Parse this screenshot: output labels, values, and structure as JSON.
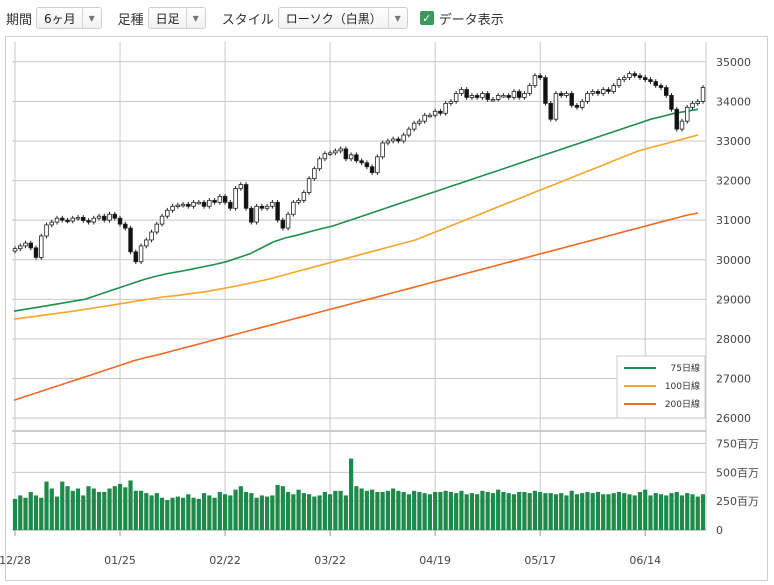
{
  "toolbar": {
    "period_label": "期間",
    "period_value": "6ヶ月",
    "bar_label": "足種",
    "bar_value": "日足",
    "style_label": "スタイル",
    "style_value": "ローソク（白黒）",
    "data_display_label": "データ表示"
  },
  "chart_data": {
    "type": "candlestick",
    "x_ticks": [
      "12/28",
      "01/25",
      "02/22",
      "03/22",
      "04/19",
      "05/17",
      "06/14"
    ],
    "x_tick_index": [
      0,
      20,
      40,
      60,
      80,
      100,
      120
    ],
    "price_ticks": [
      26000,
      27000,
      28000,
      29000,
      30000,
      31000,
      32000,
      33000,
      34000,
      35000
    ],
    "price_tick_labels": [
      "26000",
      "27000",
      "28000",
      "29000",
      "30000",
      "31000",
      "32000",
      "33000",
      "34000",
      "35000"
    ],
    "price_range": [
      25700,
      35500
    ],
    "volume_ticks": [
      0,
      250,
      500,
      750
    ],
    "volume_tick_labels": [
      "0",
      "250百万",
      "500百万",
      "750百万"
    ],
    "volume_range": [
      0,
      850
    ],
    "grid": true,
    "legend_position": "bottom-right",
    "close": [
      30280,
      30350,
      30420,
      30300,
      30060,
      30600,
      30880,
      30950,
      31050,
      31000,
      30980,
      31050,
      31070,
      30990,
      30950,
      31050,
      31100,
      31000,
      31150,
      31050,
      30900,
      30800,
      30200,
      29950,
      30350,
      30500,
      30700,
      30900,
      31100,
      31250,
      31350,
      31380,
      31400,
      31350,
      31450,
      31450,
      31350,
      31500,
      31450,
      31600,
      31450,
      31300,
      31800,
      31900,
      31300,
      30950,
      31350,
      31300,
      31350,
      31450,
      31000,
      30800,
      31150,
      31450,
      31500,
      31700,
      32050,
      32300,
      32550,
      32680,
      32700,
      32750,
      32800,
      32550,
      32650,
      32500,
      32450,
      32350,
      32200,
      32600,
      32950,
      33000,
      33050,
      33000,
      33150,
      33300,
      33450,
      33500,
      33650,
      33650,
      33750,
      33700,
      33950,
      34000,
      34200,
      34300,
      34100,
      34150,
      34100,
      34200,
      34050,
      34050,
      34150,
      34150,
      34100,
      34250,
      34100,
      34200,
      34400,
      34650,
      34600,
      33950,
      33550,
      34200,
      34150,
      34200,
      33900,
      33850,
      34000,
      34200,
      34250,
      34200,
      34300,
      34250,
      34400,
      34550,
      34600,
      34700,
      34650,
      34600,
      34550,
      34500,
      34400,
      34350,
      34150,
      33800,
      33300,
      33500,
      33850,
      33950,
      34000,
      34350
    ],
    "ma75": [
      28700,
      28750,
      28800,
      28850,
      28900,
      28950,
      29000,
      29100,
      29200,
      29300,
      29400,
      29500,
      29580,
      29650,
      29700,
      29760,
      29820,
      29880,
      29950,
      30050,
      30150,
      30300,
      30450,
      30550,
      30620,
      30700,
      30780,
      30850,
      30950,
      31050,
      31150,
      31250,
      31350,
      31450,
      31550,
      31650,
      31750,
      31850,
      31950,
      32050,
      32150,
      32250,
      32350,
      32450,
      32550,
      32650,
      32750,
      32850,
      32950,
      33050,
      33150,
      33250,
      33350,
      33450,
      33550,
      33620,
      33700,
      33750,
      33800
    ],
    "ma100": [
      28500,
      28550,
      28600,
      28650,
      28700,
      28760,
      28820,
      28880,
      28940,
      29000,
      29060,
      29100,
      29150,
      29200,
      29270,
      29340,
      29420,
      29500,
      29600,
      29700,
      29800,
      29900,
      30000,
      30100,
      30200,
      30300,
      30400,
      30500,
      30650,
      30800,
      30950,
      31100,
      31250,
      31400,
      31550,
      31700,
      31850,
      32000,
      32150,
      32300,
      32450,
      32600,
      32750,
      32850,
      32950,
      33050,
      33150
    ],
    "ma200": [
      26450,
      26550,
      26650,
      26750,
      26850,
      26950,
      27050,
      27150,
      27250,
      27350,
      27450,
      27530,
      27600,
      27680,
      27760,
      27840,
      27920,
      28000,
      28080,
      28160,
      28240,
      28320,
      28400,
      28480,
      28560,
      28640,
      28720,
      28800,
      28880,
      28960,
      29040,
      29120,
      29200,
      29280,
      29360,
      29440,
      29520,
      29600,
      29680,
      29760,
      29840,
      29920,
      30000,
      30080,
      30160,
      30240,
      30320,
      30400,
      30480,
      30560,
      30640,
      30720,
      30800,
      30880,
      30960,
      31040,
      31120,
      31180
    ],
    "volume": [
      270,
      300,
      280,
      330,
      300,
      280,
      420,
      360,
      290,
      420,
      380,
      340,
      360,
      300,
      380,
      360,
      330,
      330,
      360,
      380,
      400,
      370,
      430,
      340,
      340,
      320,
      300,
      320,
      280,
      260,
      280,
      290,
      280,
      310,
      280,
      270,
      320,
      300,
      280,
      330,
      310,
      300,
      350,
      380,
      330,
      320,
      280,
      300,
      290,
      300,
      390,
      380,
      330,
      310,
      350,
      320,
      310,
      290,
      300,
      330,
      310,
      340,
      340,
      300,
      620,
      380,
      360,
      340,
      350,
      330,
      330,
      340,
      360,
      340,
      330,
      310,
      340,
      330,
      320,
      310,
      330,
      330,
      340,
      330,
      320,
      340,
      310,
      320,
      310,
      340,
      330,
      320,
      350,
      330,
      320,
      310,
      330,
      330,
      320,
      340,
      330,
      320,
      320,
      310,
      320,
      300,
      340,
      310,
      320,
      330,
      320,
      330,
      310,
      310,
      320,
      330,
      320,
      310,
      300,
      330,
      350,
      300,
      320,
      310,
      300,
      320,
      330,
      300,
      320,
      310,
      290,
      310
    ]
  },
  "legend": {
    "ma75_label": "75日線",
    "ma100_label": "100日線",
    "ma200_label": "200日線",
    "ma75_color": "#1f8f4e",
    "ma100_color": "#f2a72a",
    "ma200_color": "#ef6a22"
  },
  "colors": {
    "up": "#ffffff",
    "down": "#111111",
    "volume": "#1d8a4a",
    "grid": "#c8c8c8"
  }
}
